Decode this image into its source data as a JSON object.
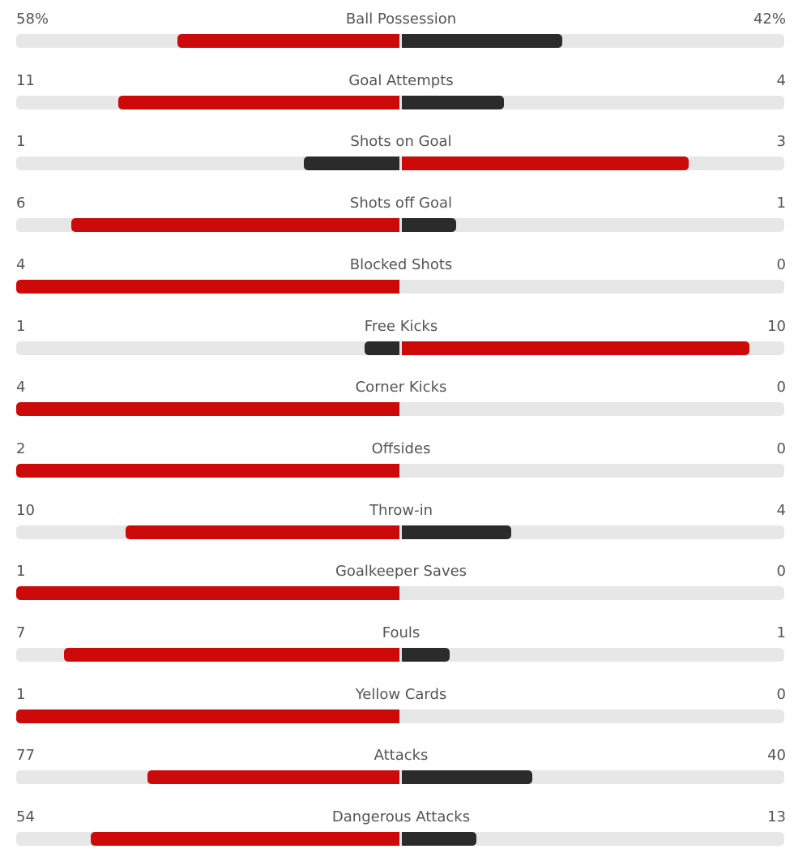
{
  "colors": {
    "leading": "#cc0a0a",
    "trailing": "#2b2b2b",
    "track": "#e7e7e7",
    "text": "#555555"
  },
  "stats": [
    {
      "name": "Ball Possession",
      "home": "58%",
      "away": "42%",
      "home_num": 58,
      "away_num": 42
    },
    {
      "name": "Goal Attempts",
      "home": "11",
      "away": "4",
      "home_num": 11,
      "away_num": 4
    },
    {
      "name": "Shots on Goal",
      "home": "1",
      "away": "3",
      "home_num": 1,
      "away_num": 3
    },
    {
      "name": "Shots off Goal",
      "home": "6",
      "away": "1",
      "home_num": 6,
      "away_num": 1
    },
    {
      "name": "Blocked Shots",
      "home": "4",
      "away": "0",
      "home_num": 4,
      "away_num": 0
    },
    {
      "name": "Free Kicks",
      "home": "1",
      "away": "10",
      "home_num": 1,
      "away_num": 10
    },
    {
      "name": "Corner Kicks",
      "home": "4",
      "away": "0",
      "home_num": 4,
      "away_num": 0
    },
    {
      "name": "Offsides",
      "home": "2",
      "away": "0",
      "home_num": 2,
      "away_num": 0
    },
    {
      "name": "Throw-in",
      "home": "10",
      "away": "4",
      "home_num": 10,
      "away_num": 4
    },
    {
      "name": "Goalkeeper Saves",
      "home": "1",
      "away": "0",
      "home_num": 1,
      "away_num": 0
    },
    {
      "name": "Fouls",
      "home": "7",
      "away": "1",
      "home_num": 7,
      "away_num": 1
    },
    {
      "name": "Yellow Cards",
      "home": "1",
      "away": "0",
      "home_num": 1,
      "away_num": 0
    },
    {
      "name": "Attacks",
      "home": "77",
      "away": "40",
      "home_num": 77,
      "away_num": 40
    },
    {
      "name": "Dangerous Attacks",
      "home": "54",
      "away": "13",
      "home_num": 54,
      "away_num": 13
    }
  ]
}
